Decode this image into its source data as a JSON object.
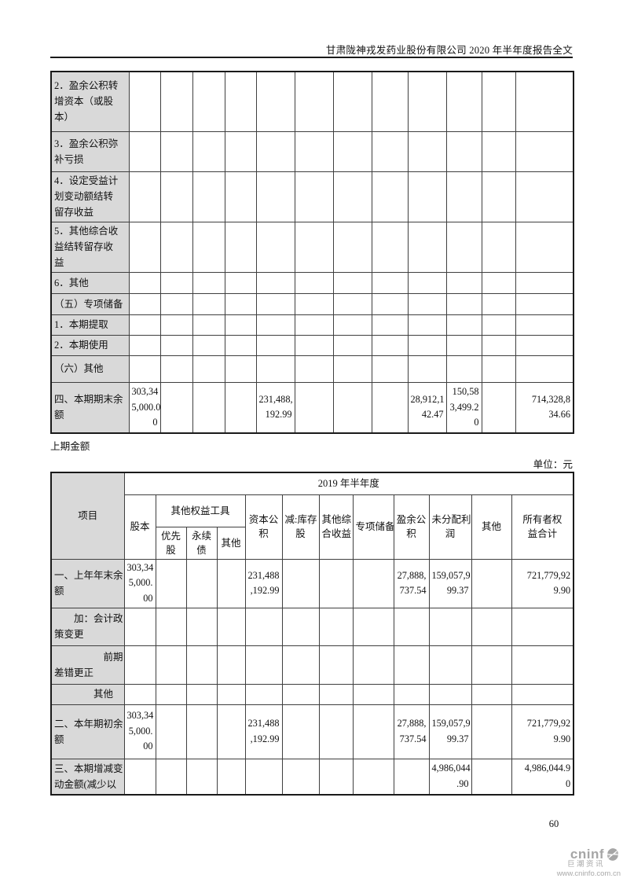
{
  "page": {
    "header_title": "甘肃陇神戎发药业股份有限公司 2020 年半年度报告全文",
    "section_label": "上期金额",
    "unit_label": "单位：元",
    "page_number": "60"
  },
  "footer_logo": {
    "brand": "cninf",
    "caption": "巨潮资讯",
    "url": "www.cninfo.com.cn",
    "color": "#a6a6a6"
  },
  "table1": {
    "rows": [
      {
        "label": "2．盈余公积转\n增资本（或股\n本）",
        "cells": [
          "",
          "",
          "",
          "",
          "",
          "",
          "",
          "",
          "",
          "",
          "",
          ""
        ]
      },
      {
        "label": "3．盈余公积弥\n补亏损",
        "cells": [
          "",
          "",
          "",
          "",
          "",
          "",
          "",
          "",
          "",
          "",
          "",
          ""
        ]
      },
      {
        "label": "4．设定受益计\n划变动额结转\n留存收益",
        "cells": [
          "",
          "",
          "",
          "",
          "",
          "",
          "",
          "",
          "",
          "",
          "",
          ""
        ]
      },
      {
        "label": "5．其他综合收\n益结转留存收\n益",
        "cells": [
          "",
          "",
          "",
          "",
          "",
          "",
          "",
          "",
          "",
          "",
          "",
          ""
        ]
      },
      {
        "label": "6．其他",
        "cells": [
          "",
          "",
          "",
          "",
          "",
          "",
          "",
          "",
          "",
          "",
          "",
          ""
        ]
      },
      {
        "label": "（五）专项储备",
        "cells": [
          "",
          "",
          "",
          "",
          "",
          "",
          "",
          "",
          "",
          "",
          "",
          ""
        ]
      },
      {
        "label": "1．本期提取",
        "cells": [
          "",
          "",
          "",
          "",
          "",
          "",
          "",
          "",
          "",
          "",
          "",
          ""
        ]
      },
      {
        "label": "2．本期使用",
        "cells": [
          "",
          "",
          "",
          "",
          "",
          "",
          "",
          "",
          "",
          "",
          "",
          ""
        ]
      },
      {
        "label": "（六）其他",
        "cells": [
          "",
          "",
          "",
          "",
          "",
          "",
          "",
          "",
          "",
          "",
          "",
          ""
        ]
      },
      {
        "label": "四、本期期末余\n额",
        "cells": [
          "303,34\n5,000.0\n0",
          "",
          "",
          "",
          "231,488,\n192.99",
          "",
          "",
          "",
          "28,912,1\n42.47",
          "150,58\n3,499.2\n0",
          "",
          "714,328,8\n34.66"
        ]
      }
    ]
  },
  "table2": {
    "header": {
      "item": "项目",
      "period": "2019 年半年度",
      "share_capital": "股本",
      "other_equity_tools": "其他权益工具",
      "preferred": "优先\n股",
      "perpetual": "永续\n债",
      "other_tool": "其他",
      "capital_reserve": "资本公\n积",
      "less_treasury": "减:库存\n股",
      "other_comprehensive": "其他综\n合收益",
      "special_reserve": "专项储备",
      "surplus_reserve": "盈余公\n积",
      "undistributed_profit": "未分配利\n润",
      "other": "其他",
      "total_equity": "所有者权\n益合计"
    },
    "rows": [
      {
        "label": "一、上年年末余\n额",
        "cells": [
          "303,34\n5,000.\n00",
          "",
          "",
          "",
          "231,488\n,192.99",
          "",
          "",
          "",
          "27,888,\n737.54",
          "159,057,9\n99.37",
          "",
          "721,779,92\n9.90"
        ]
      },
      {
        "label": "　　加：会计政\n策变更",
        "cells": [
          "",
          "",
          "",
          "",
          "",
          "",
          "",
          "",
          "",
          "",
          "",
          ""
        ]
      },
      {
        "label": "　　　　　前期\n差错更正",
        "cells": [
          "",
          "",
          "",
          "",
          "",
          "",
          "",
          "",
          "",
          "",
          "",
          ""
        ]
      },
      {
        "label": "　　　　其他",
        "cells": [
          "",
          "",
          "",
          "",
          "",
          "",
          "",
          "",
          "",
          "",
          "",
          ""
        ]
      },
      {
        "label": "二、本年期初余\n额",
        "cells": [
          "303,34\n5,000.\n00",
          "",
          "",
          "",
          "231,488\n,192.99",
          "",
          "",
          "",
          "27,888,\n737.54",
          "159,057,9\n99.37",
          "",
          "721,779,92\n9.90"
        ]
      },
      {
        "label": "三、本期增减变\n动金额(减少以",
        "cells": [
          "",
          "",
          "",
          "",
          "",
          "",
          "",
          "",
          "",
          "4,986,044\n.90",
          "",
          "4,986,044.9\n0"
        ]
      }
    ]
  }
}
